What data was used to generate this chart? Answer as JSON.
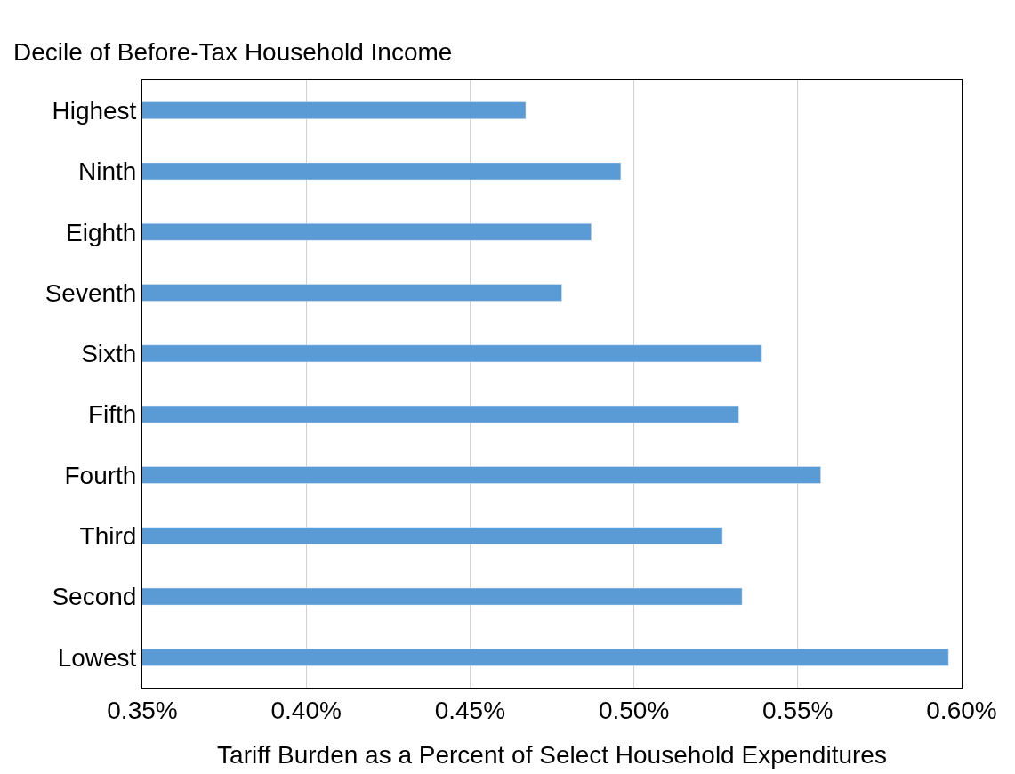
{
  "chart_data": {
    "type": "bar",
    "orientation": "horizontal",
    "ylabel": "Decile of Before-Tax Household Income",
    "xlabel": "Tariff Burden as a Percent of Select Household Expenditures",
    "categories": [
      "Highest",
      "Ninth",
      "Eighth",
      "Seventh",
      "Sixth",
      "Fifth",
      "Fourth",
      "Third",
      "Second",
      "Lowest"
    ],
    "values": [
      0.467,
      0.496,
      0.487,
      0.478,
      0.539,
      0.532,
      0.557,
      0.527,
      0.533,
      0.596
    ],
    "color": "#5b9bd5",
    "xlim": [
      0.35,
      0.6
    ],
    "xticks": [
      {
        "value": 0.35,
        "label": "0.35%"
      },
      {
        "value": 0.4,
        "label": "0.40%"
      },
      {
        "value": 0.45,
        "label": "0.45%"
      },
      {
        "value": 0.5,
        "label": "0.50%"
      },
      {
        "value": 0.55,
        "label": "0.55%"
      },
      {
        "value": 0.6,
        "label": "0.60%"
      }
    ],
    "grid": "x",
    "legend": false
  }
}
